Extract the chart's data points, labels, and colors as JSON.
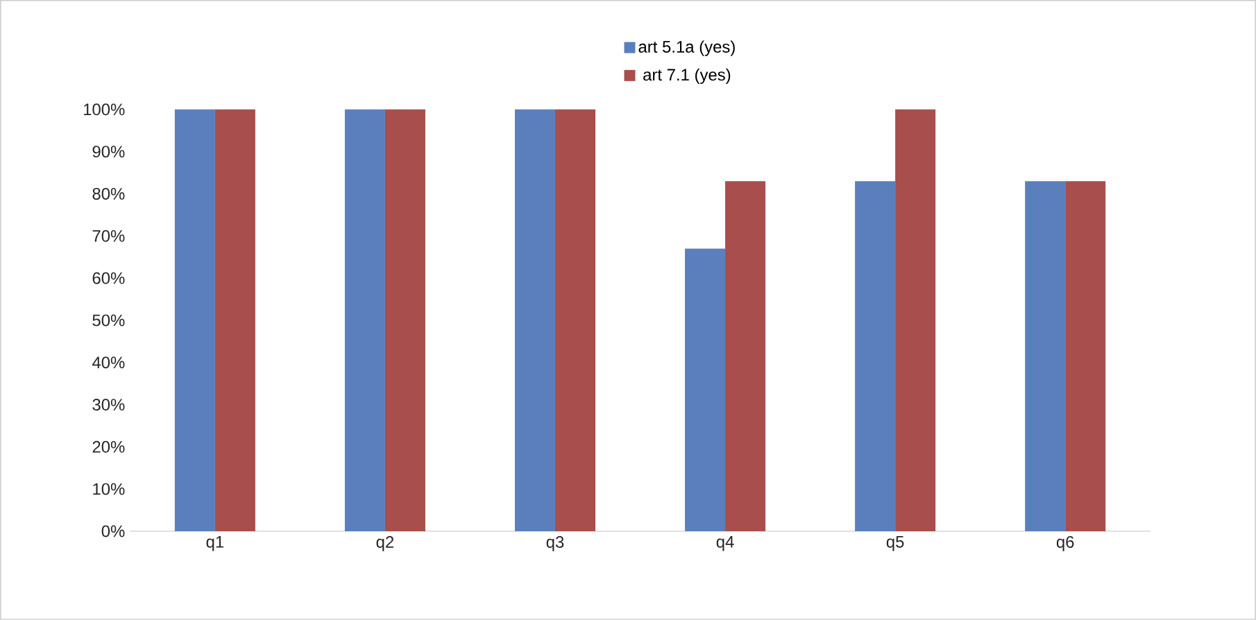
{
  "chart_data": {
    "type": "bar",
    "categories": [
      "q1",
      "q2",
      "q3",
      "q4",
      "q5",
      "q6"
    ],
    "series": [
      {
        "name": "art 5.1a  (yes)",
        "color": "#5b7fbd",
        "values": [
          100,
          100,
          100,
          67,
          83,
          83
        ]
      },
      {
        "name": "art 7.1  (yes)",
        "color": "#a84e4c",
        "values": [
          100,
          100,
          100,
          83,
          100,
          83
        ]
      }
    ],
    "ylim": [
      0,
      100
    ],
    "yticks": [
      {
        "value": 0,
        "label": "0%"
      },
      {
        "value": 10,
        "label": "10%"
      },
      {
        "value": 20,
        "label": "20%"
      },
      {
        "value": 30,
        "label": "30%"
      },
      {
        "value": 40,
        "label": "40%"
      },
      {
        "value": 50,
        "label": "50%"
      },
      {
        "value": 60,
        "label": "60%"
      },
      {
        "value": 70,
        "label": "70%"
      },
      {
        "value": 80,
        "label": "80%"
      },
      {
        "value": 90,
        "label": "90%"
      },
      {
        "value": 100,
        "label": "100%"
      }
    ],
    "legend": "top"
  }
}
